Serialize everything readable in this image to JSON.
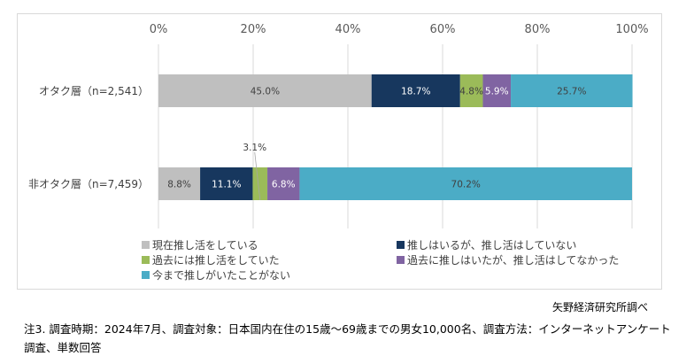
{
  "chart_data": {
    "type": "bar",
    "orientation": "horizontal",
    "stacked": true,
    "title": "",
    "xlabel": "",
    "ylabel": "",
    "xlim": [
      0,
      100
    ],
    "x_ticks": [
      "0%",
      "20%",
      "40%",
      "60%",
      "80%",
      "100%"
    ],
    "grid": true,
    "categories": [
      "オタク層（n=2,541）",
      "非オタク層（n=7,459）"
    ],
    "series": [
      {
        "name": "現在推し活をしている",
        "color": "#bfbfbf",
        "label_color": "#404040",
        "values": [
          45.0,
          8.8
        ],
        "labels": [
          "45.0%",
          "8.8%"
        ]
      },
      {
        "name": "推しはいるが、推し活はしていない",
        "color": "#17375e",
        "label_color": "#ffffff",
        "values": [
          18.7,
          11.1
        ],
        "labels": [
          "18.7%",
          "11.1%"
        ]
      },
      {
        "name": "過去には推し活をしていた",
        "color": "#9bbb59",
        "label_color": "#404040",
        "values": [
          4.8,
          3.1
        ],
        "labels": [
          "4.8%",
          "3.1%"
        ]
      },
      {
        "name": "過去に推しはいたが、推し活はしてなかった",
        "color": "#8064a2",
        "label_color": "#ffffff",
        "values": [
          5.9,
          6.8
        ],
        "labels": [
          "5.9%",
          "6.8%"
        ]
      },
      {
        "name": "今まで推しがいたことがない",
        "color": "#4bacc6",
        "label_color": "#404040",
        "values": [
          25.7,
          70.2
        ],
        "labels": [
          "25.7%",
          "70.2%"
        ]
      }
    ],
    "legend_position": "bottom"
  },
  "source": "矢野経済研究所調べ",
  "note": "注3. 調査時期：2024年7月、調査対象：日本国内在住の15歳～69歳までの男女10,000名、調査方法：インターネットアンケート調査、単数回答"
}
